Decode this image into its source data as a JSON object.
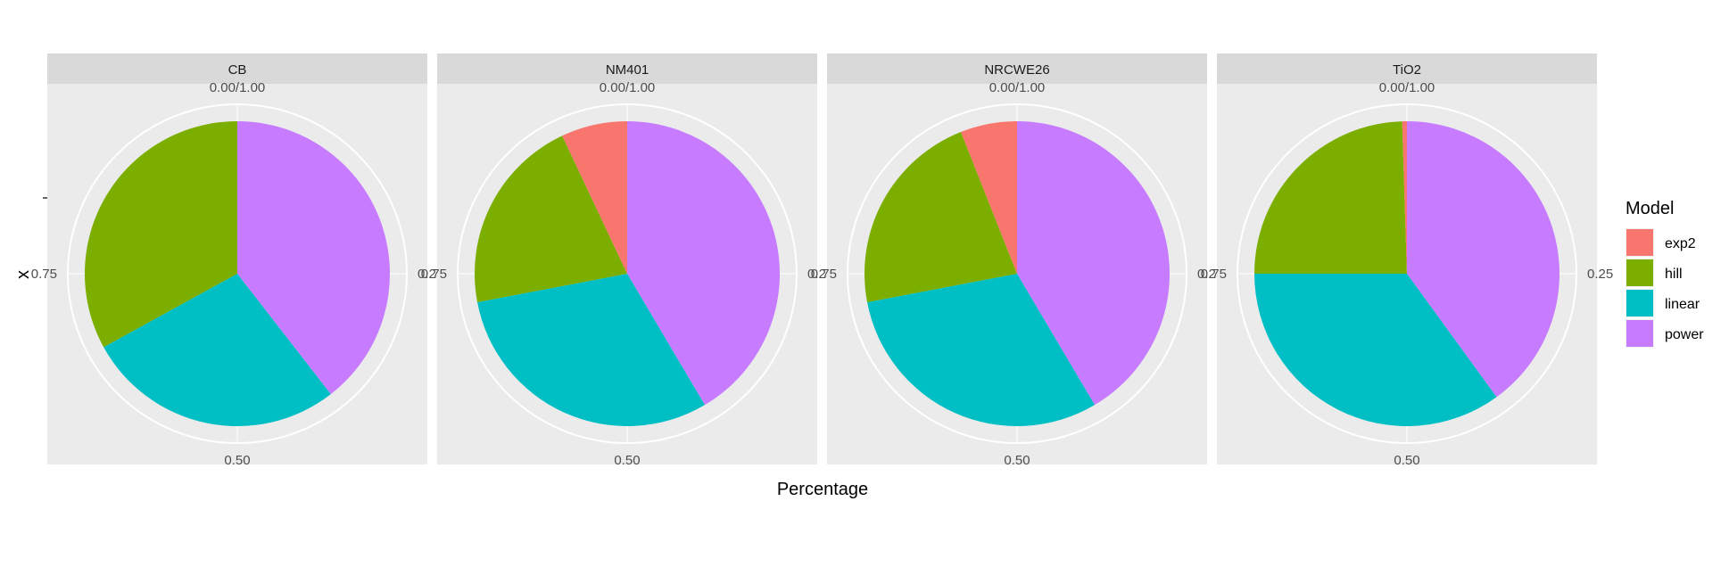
{
  "chart_data": {
    "type": "pie",
    "facet_labels": [
      "CB",
      "NM401",
      "NRCWE26",
      "TiO2"
    ],
    "categories": [
      "exp2",
      "hill",
      "linear",
      "power"
    ],
    "colors": {
      "exp2": "#F8766D",
      "hill": "#7CAE00",
      "linear": "#00BFC4",
      "power": "#C77CFF"
    },
    "facets": [
      {
        "label": "CB",
        "values": {
          "power": 0.395,
          "linear": 0.275,
          "hill": 0.33,
          "exp2": 0.0
        }
      },
      {
        "label": "NM401",
        "values": {
          "power": 0.415,
          "linear": 0.305,
          "hill": 0.21,
          "exp2": 0.07
        }
      },
      {
        "label": "NRCWE26",
        "values": {
          "power": 0.415,
          "linear": 0.305,
          "hill": 0.22,
          "exp2": 0.06
        }
      },
      {
        "label": "TiO2",
        "values": {
          "power": 0.4,
          "linear": 0.35,
          "hill": 0.245,
          "exp2": 0.005
        }
      }
    ],
    "angular_ticks": [
      "0.00/1.00",
      "0.25",
      "0.50",
      "0.75"
    ],
    "xlabel": "Percentage",
    "ylabel": "x",
    "legend": {
      "title": "Model",
      "position": "right"
    },
    "grid": true
  }
}
